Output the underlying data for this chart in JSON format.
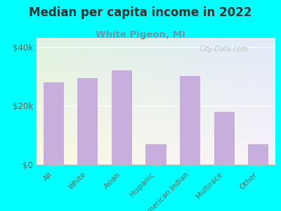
{
  "title": "Median per capita income in 2022",
  "subtitle": "White Pigeon, MI",
  "categories": [
    "All",
    "White",
    "Asian",
    "Hispanic",
    "American Indian",
    "Multirace",
    "Other"
  ],
  "values": [
    28000,
    29500,
    32000,
    7000,
    30000,
    18000,
    7000
  ],
  "bar_color": "#c8aedd",
  "background_color": "#00ffff",
  "title_color": "#333333",
  "subtitle_color": "#6699aa",
  "tick_label_color": "#666655",
  "ytick_labels": [
    "$0",
    "$20k",
    "$40k"
  ],
  "ytick_values": [
    0,
    20000,
    40000
  ],
  "ylim": [
    0,
    43000
  ],
  "watermark": "City-Data.com"
}
